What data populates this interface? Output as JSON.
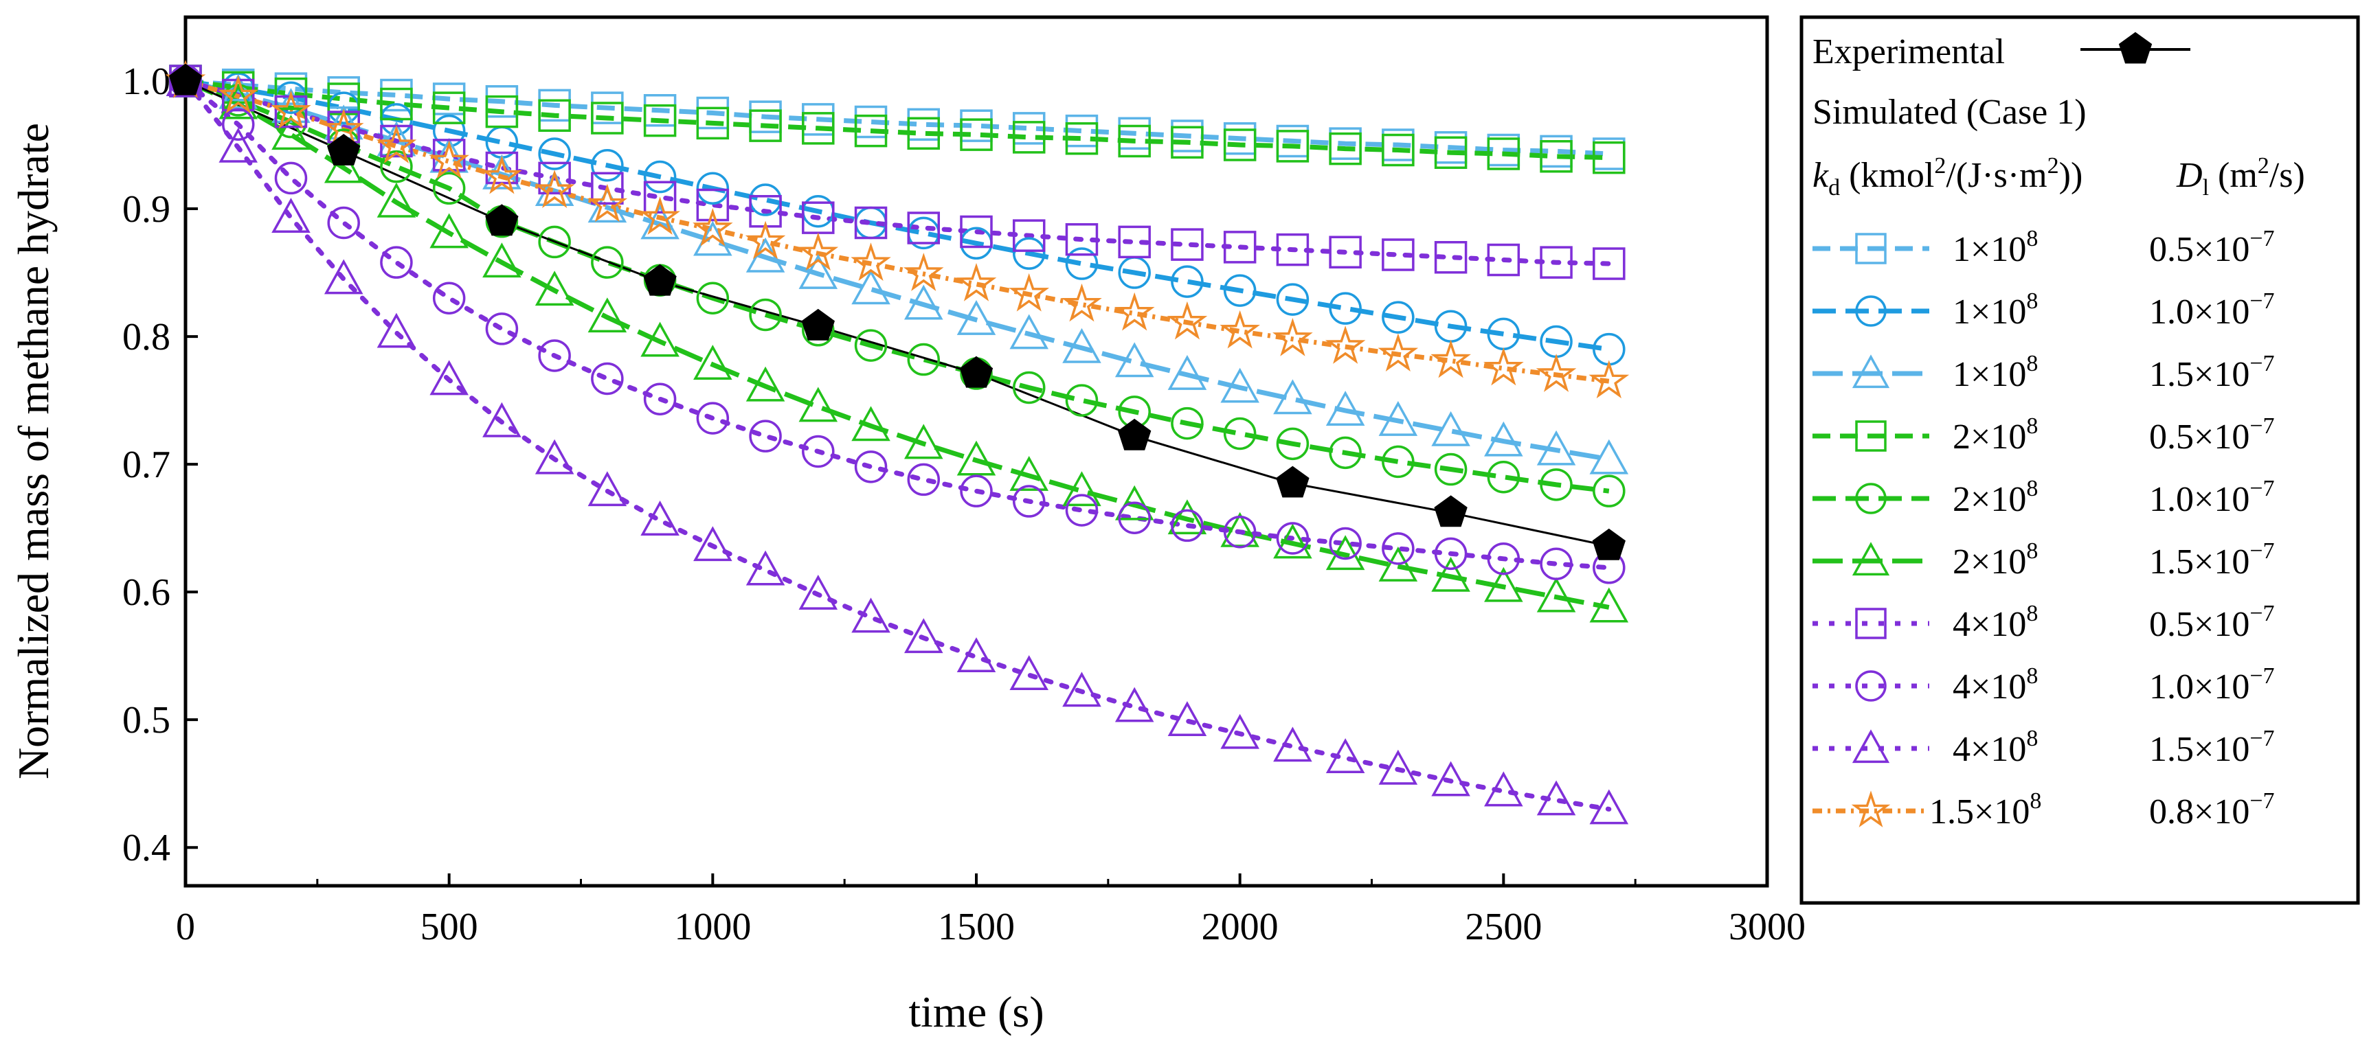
{
  "chart_data": {
    "type": "line",
    "title": "",
    "xlabel": "time (s)",
    "ylabel": "Normalized mass of methane hydrate",
    "xlim": [
      0,
      3000
    ],
    "ylim": [
      0.37,
      1.05
    ],
    "xticks": [
      0,
      500,
      1000,
      1500,
      2000,
      2500,
      3000
    ],
    "yticks": [
      0.4,
      0.5,
      0.6,
      0.7,
      0.8,
      0.9,
      1.0
    ],
    "grid": false,
    "legend_position": "right-outside",
    "legend": {
      "header": "Experimental",
      "simulated_header": "Simulated (Case 1)",
      "kd_symbol": "k",
      "kd_subscript": "d",
      "kd_unit_open": " (kmol",
      "kd_unit_sup": "2",
      "kd_unit_mid": "/(J·s·m",
      "kd_unit_close": "))",
      "dl_symbol": "D",
      "dl_subscript": "l",
      "dl_unit_open": " (m",
      "dl_unit_sup": "2",
      "dl_unit_close": "/s)"
    },
    "x": [
      0,
      100,
      200,
      300,
      400,
      500,
      600,
      700,
      800,
      900,
      1000,
      1100,
      1200,
      1300,
      1400,
      1500,
      1600,
      1700,
      1800,
      1900,
      2000,
      2100,
      2200,
      2300,
      2400,
      2500,
      2600,
      2700
    ],
    "experimental": {
      "name": "Experimental",
      "color": "#000000",
      "marker": "pentagon",
      "x": [
        0,
        300,
        600,
        900,
        1200,
        1500,
        1800,
        2100,
        2400,
        2700
      ],
      "values": [
        1.0,
        0.945,
        0.89,
        0.843,
        0.808,
        0.771,
        0.722,
        0.685,
        0.662,
        0.636
      ]
    },
    "series": [
      {
        "name": "kd 1×10^8, Dl 0.5×10^-7",
        "kd_mant": "1",
        "kd_exp": "8",
        "dl_mant": "0.5",
        "dl_exp": "−7",
        "color": "#5BB4E8",
        "dash": "26,14",
        "marker": "square",
        "values": [
          1.0,
          0.997,
          0.994,
          0.991,
          0.989,
          0.986,
          0.984,
          0.981,
          0.979,
          0.977,
          0.975,
          0.972,
          0.97,
          0.968,
          0.966,
          0.965,
          0.963,
          0.961,
          0.959,
          0.957,
          0.955,
          0.953,
          0.951,
          0.95,
          0.948,
          0.946,
          0.945,
          0.943
        ]
      },
      {
        "name": "kd 1×10^8, Dl 1.0×10^-7",
        "kd_mant": "1",
        "kd_exp": "8",
        "dl_mant": "1.0",
        "dl_exp": "−7",
        "color": "#1E9BE0",
        "dash": "34,14",
        "marker": "circle",
        "values": [
          1.0,
          0.994,
          0.987,
          0.979,
          0.97,
          0.961,
          0.952,
          0.943,
          0.934,
          0.925,
          0.916,
          0.907,
          0.898,
          0.889,
          0.881,
          0.873,
          0.865,
          0.857,
          0.85,
          0.843,
          0.836,
          0.829,
          0.822,
          0.815,
          0.808,
          0.802,
          0.796,
          0.79
        ]
      },
      {
        "name": "kd 1×10^8, Dl 1.5×10^-7",
        "kd_mant": "1",
        "kd_exp": "8",
        "dl_mant": "1.5",
        "dl_exp": "−7",
        "color": "#5BB4E8",
        "dash": "44,14",
        "marker": "triangle",
        "values": [
          1.0,
          0.99,
          0.979,
          0.966,
          0.953,
          0.94,
          0.927,
          0.914,
          0.901,
          0.888,
          0.875,
          0.862,
          0.849,
          0.837,
          0.825,
          0.813,
          0.802,
          0.791,
          0.78,
          0.77,
          0.76,
          0.751,
          0.742,
          0.734,
          0.726,
          0.718,
          0.711,
          0.704
        ]
      },
      {
        "name": "kd 2×10^8, Dl 0.5×10^-7",
        "kd_mant": "2",
        "kd_exp": "8",
        "dl_mant": "0.5",
        "dl_exp": "−7",
        "color": "#22C11A",
        "dash": "26,14",
        "marker": "square",
        "values": [
          1.0,
          0.995,
          0.99,
          0.986,
          0.982,
          0.979,
          0.976,
          0.973,
          0.971,
          0.969,
          0.967,
          0.965,
          0.963,
          0.961,
          0.959,
          0.958,
          0.956,
          0.955,
          0.953,
          0.952,
          0.95,
          0.949,
          0.947,
          0.946,
          0.944,
          0.943,
          0.941,
          0.94
        ]
      },
      {
        "name": "kd 2×10^8, Dl 1.0×10^-7",
        "kd_mant": "2",
        "kd_exp": "8",
        "dl_mant": "1.0",
        "dl_exp": "−7",
        "color": "#22C11A",
        "dash": "34,14",
        "marker": "circle",
        "values": [
          1.0,
          0.985,
          0.968,
          0.95,
          0.933,
          0.916,
          0.89,
          0.874,
          0.858,
          0.844,
          0.83,
          0.817,
          0.805,
          0.793,
          0.782,
          0.771,
          0.76,
          0.75,
          0.741,
          0.732,
          0.724,
          0.716,
          0.709,
          0.702,
          0.696,
          0.69,
          0.684,
          0.679
        ]
      },
      {
        "name": "kd 2×10^8, Dl 1.5×10^-7",
        "kd_mant": "2",
        "kd_exp": "8",
        "dl_mant": "1.5",
        "dl_exp": "−7",
        "color": "#22C11A",
        "dash": "44,14",
        "marker": "triangle",
        "values": [
          1.0,
          0.982,
          0.958,
          0.932,
          0.905,
          0.881,
          0.858,
          0.836,
          0.815,
          0.796,
          0.778,
          0.761,
          0.745,
          0.73,
          0.716,
          0.703,
          0.691,
          0.679,
          0.668,
          0.657,
          0.647,
          0.638,
          0.629,
          0.62,
          0.612,
          0.604,
          0.596,
          0.588
        ]
      },
      {
        "name": "kd 4×10^8, Dl 0.5×10^-7",
        "kd_mant": "4",
        "kd_exp": "8",
        "dl_mant": "0.5",
        "dl_exp": "−7",
        "color": "#7F2FD9",
        "dash": "8,16",
        "marker": "square",
        "values": [
          1.0,
          0.989,
          0.976,
          0.964,
          0.953,
          0.942,
          0.932,
          0.924,
          0.916,
          0.909,
          0.903,
          0.898,
          0.893,
          0.889,
          0.885,
          0.882,
          0.879,
          0.876,
          0.874,
          0.872,
          0.87,
          0.868,
          0.866,
          0.864,
          0.862,
          0.86,
          0.858,
          0.857
        ]
      },
      {
        "name": "kd 4×10^8, Dl 1.0×10^-7",
        "kd_mant": "4",
        "kd_exp": "8",
        "dl_mant": "1.0",
        "dl_exp": "−7",
        "color": "#7F2FD9",
        "dash": "8,16",
        "marker": "circle",
        "values": [
          1.0,
          0.966,
          0.924,
          0.889,
          0.858,
          0.83,
          0.806,
          0.785,
          0.767,
          0.751,
          0.736,
          0.722,
          0.71,
          0.698,
          0.688,
          0.679,
          0.671,
          0.664,
          0.658,
          0.652,
          0.647,
          0.642,
          0.638,
          0.634,
          0.63,
          0.626,
          0.622,
          0.619
        ]
      },
      {
        "name": "kd 4×10^8, Dl 1.5×10^-7",
        "kd_mant": "4",
        "kd_exp": "8",
        "dl_mant": "1.5",
        "dl_exp": "−7",
        "color": "#7F2FD9",
        "dash": "8,16",
        "marker": "triangle",
        "values": [
          1.0,
          0.948,
          0.893,
          0.845,
          0.803,
          0.766,
          0.733,
          0.704,
          0.679,
          0.656,
          0.636,
          0.617,
          0.598,
          0.58,
          0.564,
          0.549,
          0.535,
          0.522,
          0.51,
          0.499,
          0.489,
          0.479,
          0.47,
          0.461,
          0.452,
          0.444,
          0.437,
          0.43
        ]
      },
      {
        "name": "kd 1.5×10^8, Dl 0.8×10^-7",
        "kd_mant": "1.5",
        "kd_exp": "8",
        "dl_mant": "0.8",
        "dl_exp": "−7",
        "color": "#F08C2A",
        "dash": "14,8,4,8",
        "marker": "star",
        "values": [
          1.0,
          0.988,
          0.976,
          0.962,
          0.949,
          0.937,
          0.925,
          0.914,
          0.903,
          0.893,
          0.884,
          0.874,
          0.865,
          0.857,
          0.849,
          0.841,
          0.833,
          0.825,
          0.818,
          0.811,
          0.804,
          0.798,
          0.792,
          0.786,
          0.781,
          0.775,
          0.77,
          0.765
        ]
      }
    ]
  }
}
